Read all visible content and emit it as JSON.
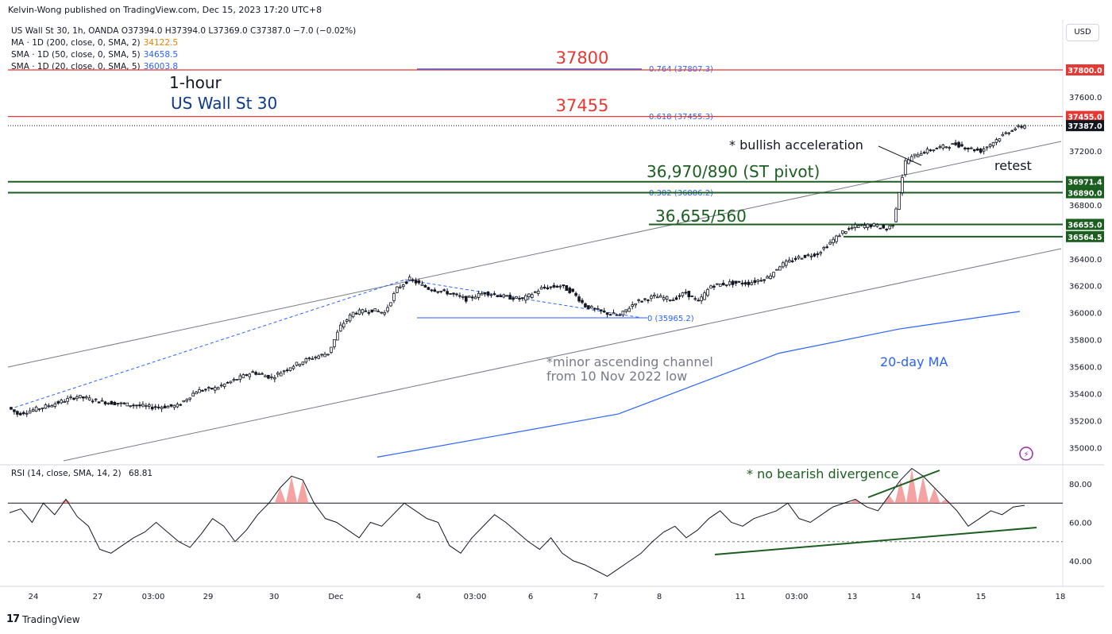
{
  "header": {
    "publisher": "Kelvin-Wong published on TradingView.com, Dec 15, 2023 17:20 UTC+8"
  },
  "legend": {
    "symbol_line": "US Wall St 30, 1h, OANDA  O37394.0  H37394.0  L37369.0  C37387.0  −7.0 (−0.02%)",
    "indicators": [
      {
        "label": "MA · 1D (200, close, 0, SMA, 2)",
        "value": "34122.5",
        "color": "#f57c00"
      },
      {
        "label": "SMA · 1D (50, close, 0, SMA, 5)",
        "value": "34658.5",
        "color": "#2962ff"
      },
      {
        "label": "SMA · 1D (20, close, 0, SMA, 5)",
        "value": "36003.8",
        "color": "#2962ff"
      }
    ]
  },
  "currency_button": "USD",
  "rsi_legend": {
    "label": "RSI (14, close, SMA, 14, 2)",
    "value": "68.81"
  },
  "branding": {
    "logo_text": "TradingView",
    "logo_mark": "17"
  },
  "colors": {
    "resistance": "#e53935",
    "support": "#1b5e20",
    "channel": "#787b86",
    "ma20": "#2962ff",
    "fib": "#2962ff",
    "candle": "#131722",
    "rsi_overbought_fill": "#f28b8b"
  },
  "chart_data": [
    {
      "type": "candlestick",
      "title": "US Wall St 30",
      "timeframe": "1-hour",
      "y_axis": {
        "ticks": [
          "37800.0",
          "37600.0",
          "37455.0",
          "37387.0",
          "37200.0",
          "36971.4",
          "36890.0",
          "36800.0",
          "36655.0",
          "36564.5",
          "36400.0",
          "36200.0",
          "36000.0",
          "35800.0",
          "35600.0",
          "35400.0",
          "35200.0",
          "35000.0"
        ],
        "ylim": [
          34900,
          37900
        ]
      },
      "x_axis": {
        "ticks": [
          "24",
          "27",
          "03:00",
          "29",
          "30",
          "Dec",
          "4",
          "03:00",
          "6",
          "7",
          "8",
          "11",
          "03:00",
          "13",
          "14",
          "15",
          "18"
        ]
      },
      "price_path": [
        [
          0,
          35300
        ],
        [
          3,
          35250
        ],
        [
          8,
          35280
        ],
        [
          14,
          35320
        ],
        [
          22,
          35380
        ],
        [
          30,
          35340
        ],
        [
          38,
          35320
        ],
        [
          46,
          35300
        ],
        [
          54,
          35310
        ],
        [
          60,
          35420
        ],
        [
          66,
          35440
        ],
        [
          72,
          35500
        ],
        [
          78,
          35560
        ],
        [
          84,
          35520
        ],
        [
          90,
          35600
        ],
        [
          96,
          35660
        ],
        [
          102,
          35700
        ],
        [
          106,
          35900
        ],
        [
          110,
          36000
        ],
        [
          116,
          36020
        ],
        [
          120,
          36000
        ],
        [
          124,
          36180
        ],
        [
          128,
          36250
        ],
        [
          134,
          36180
        ],
        [
          140,
          36150
        ],
        [
          146,
          36100
        ],
        [
          152,
          36150
        ],
        [
          158,
          36120
        ],
        [
          164,
          36100
        ],
        [
          170,
          36180
        ],
        [
          176,
          36200
        ],
        [
          180,
          36150
        ],
        [
          184,
          36050
        ],
        [
          190,
          36000
        ],
        [
          195,
          35980
        ],
        [
          200,
          36080
        ],
        [
          206,
          36120
        ],
        [
          212,
          36100
        ],
        [
          216,
          36150
        ],
        [
          220,
          36080
        ],
        [
          224,
          36200
        ],
        [
          230,
          36220
        ],
        [
          236,
          36220
        ],
        [
          242,
          36260
        ],
        [
          246,
          36350
        ],
        [
          252,
          36410
        ],
        [
          258,
          36440
        ],
        [
          262,
          36520
        ],
        [
          266,
          36600
        ],
        [
          270,
          36640
        ],
        [
          276,
          36650
        ],
        [
          280,
          36620
        ],
        [
          282,
          36660
        ],
        [
          284,
          36900
        ],
        [
          286,
          37120
        ],
        [
          290,
          37180
        ],
        [
          296,
          37220
        ],
        [
          302,
          37250
        ],
        [
          306,
          37220
        ],
        [
          310,
          37200
        ],
        [
          316,
          37300
        ],
        [
          320,
          37360
        ],
        [
          324,
          37387
        ]
      ],
      "levels": [
        {
          "value": 37800,
          "label": "37800",
          "axis_label": "37800.0",
          "color": "#e53935"
        },
        {
          "value": 37455,
          "label": "37455",
          "axis_label": "37455.0",
          "color": "#e53935"
        },
        {
          "value": 36971.4,
          "axis_label": "36971.4",
          "color": "#1b5e20"
        },
        {
          "value": 36890,
          "axis_label": "36890.0",
          "color": "#1b5e20"
        },
        {
          "value": 36655,
          "axis_label": "36655.0",
          "color": "#1b5e20"
        },
        {
          "value": 36564.5,
          "axis_label": "36564.5",
          "color": "#1b5e20"
        }
      ],
      "last_price": {
        "value": 37387,
        "label": "37387.0"
      },
      "fibonacci": [
        {
          "ratio": "0.764",
          "price": "37807.3"
        },
        {
          "ratio": "0.618",
          "price": "37455.3"
        },
        {
          "ratio": "0.382",
          "price": "36886.2"
        },
        {
          "ratio": "0",
          "price": "35965.2"
        }
      ],
      "annotations": [
        {
          "text": "1-hour",
          "color": "#131722"
        },
        {
          "text": "US Wall St 30",
          "color": "#0d3a8c"
        },
        {
          "text": "37800",
          "color": "#e53935"
        },
        {
          "text": "37455",
          "color": "#e53935"
        },
        {
          "text": "* bullish acceleration",
          "color": "#131722"
        },
        {
          "text": "36,970/890 (ST pivot)",
          "color": "#1b5e20"
        },
        {
          "text": "36,655/560",
          "color": "#1b5e20"
        },
        {
          "text": "retest",
          "color": "#131722"
        },
        {
          "text": "*minor ascending channel",
          "color": "#787b86"
        },
        {
          "text": "from 10 Nov 2022 low",
          "color": "#787b86"
        },
        {
          "text": "20-day MA",
          "color": "#2962ff"
        }
      ],
      "ma20": [
        [
          35000,
          34930
        ],
        [
          35600,
          35250
        ],
        [
          36000,
          35700
        ],
        [
          36300,
          35880
        ],
        [
          36600,
          36010
        ]
      ]
    },
    {
      "type": "line",
      "title": "RSI (14, close, SMA, 14, 2)",
      "ylim": [
        30,
        90
      ],
      "y_ticks": [
        "80.00",
        "60.00",
        "40.00"
      ],
      "overbought": 70,
      "midline": 50,
      "last_value": 68.81,
      "values": [
        65,
        67,
        60,
        70,
        64,
        72,
        63,
        58,
        46,
        44,
        48,
        52,
        55,
        60,
        55,
        50,
        47,
        54,
        62,
        58,
        50,
        56,
        64,
        70,
        78,
        84,
        82,
        70,
        62,
        60,
        56,
        52,
        60,
        58,
        64,
        70,
        66,
        62,
        60,
        48,
        44,
        52,
        58,
        64,
        60,
        55,
        50,
        46,
        52,
        44,
        40,
        38,
        35,
        32,
        36,
        40,
        44,
        50,
        55,
        58,
        52,
        56,
        62,
        66,
        60,
        58,
        62,
        64,
        66,
        70,
        62,
        60,
        64,
        68,
        70,
        72,
        68,
        66,
        74,
        82,
        88,
        84,
        78,
        72,
        66,
        58,
        62,
        66,
        64,
        68,
        68.81
      ],
      "annotations": [
        {
          "text": "* no bearish divergence",
          "color": "#1b5e20"
        }
      ]
    }
  ]
}
